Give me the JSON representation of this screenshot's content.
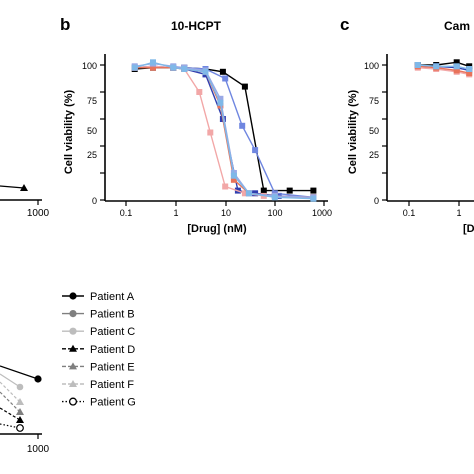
{
  "panels": {
    "a": {
      "x_ticks": [
        "1000"
      ]
    },
    "b": {
      "letter": "b",
      "title": "10-HCPT",
      "xlabel": "[Drug] (nM)",
      "ylabel": "Cell viability (%)",
      "x_ticks": [
        "0.1",
        "1",
        "10",
        "100",
        "1000"
      ],
      "y_ticks": [
        "0",
        "25",
        "50",
        "75",
        "100"
      ]
    },
    "c": {
      "letter": "c",
      "title": "Cam",
      "xlabel": "[D",
      "ylabel": "Cell viability (%)",
      "x_ticks": [
        "0.1",
        "1"
      ],
      "y_ticks": [
        "0",
        "25",
        "50",
        "75",
        "100"
      ]
    },
    "d": {
      "x_ticks": [
        "1000"
      ]
    }
  },
  "legend": {
    "entries": [
      {
        "label": "Patient A",
        "color": "#000000",
        "marker": "circle-filled",
        "dash": "solid"
      },
      {
        "label": "Patient B",
        "color": "#7f7f7f",
        "marker": "circle-filled",
        "dash": "solid"
      },
      {
        "label": "Patient C",
        "color": "#bdbdbd",
        "marker": "circle-filled",
        "dash": "solid"
      },
      {
        "label": "Patient D",
        "color": "#000000",
        "marker": "triangle-filled",
        "dash": "dashed"
      },
      {
        "label": "Patient E",
        "color": "#7f7f7f",
        "marker": "triangle-filled",
        "dash": "dashed"
      },
      {
        "label": "Patient F",
        "color": "#bdbdbd",
        "marker": "triangle-filled",
        "dash": "dashed"
      },
      {
        "label": "Patient G",
        "color": "#000000",
        "marker": "circle-open",
        "dash": "dotted"
      }
    ]
  },
  "chart_data": [
    {
      "panel": "b",
      "type": "line",
      "title": "10-HCPT",
      "xlabel": "[Drug] (nM)",
      "ylabel": "Cell viability (%)",
      "x_scale": "log",
      "xlim": [
        0.05,
        1200
      ],
      "ylim": [
        0,
        110
      ],
      "series": [
        {
          "color": "#000000",
          "marker": "square",
          "x": [
            0.15,
            0.35,
            0.9,
            1.5,
            4,
            9,
            25,
            60,
            200,
            600
          ],
          "y": [
            97,
            98,
            98,
            98,
            97,
            95,
            84,
            7,
            7,
            7
          ]
        },
        {
          "color": "#2f3fb0",
          "marker": "square",
          "x": [
            0.15,
            0.35,
            0.9,
            1.5,
            4,
            9,
            18,
            40,
            120,
            600
          ],
          "y": [
            98,
            99,
            98,
            97,
            93,
            60,
            7,
            5,
            3,
            2
          ]
        },
        {
          "color": "#6f86e0",
          "marker": "square",
          "x": [
            0.15,
            0.35,
            0.9,
            1.5,
            4,
            10,
            22,
            40,
            100,
            600
          ],
          "y": [
            98,
            99,
            98,
            98,
            97,
            90,
            55,
            37,
            5,
            2
          ]
        },
        {
          "color": "#f2a7a7",
          "marker": "square",
          "x": [
            0.15,
            0.35,
            0.9,
            1.5,
            3,
            5,
            10,
            25,
            60,
            600
          ],
          "y": [
            98,
            99,
            98,
            97,
            80,
            50,
            10,
            5,
            3,
            2
          ]
        },
        {
          "color": "#e8735a",
          "marker": "square",
          "x": [
            0.15,
            0.35,
            0.9,
            1.5,
            4,
            8,
            15,
            30,
            100,
            600
          ],
          "y": [
            98,
            98,
            98,
            97,
            95,
            70,
            15,
            5,
            3,
            2
          ]
        },
        {
          "color": "#9aa9e6",
          "marker": "square",
          "x": [
            0.15,
            0.35,
            0.9,
            1.5,
            4,
            8,
            15,
            30,
            100,
            600
          ],
          "y": [
            99,
            101,
            99,
            98,
            96,
            75,
            20,
            5,
            3,
            2
          ]
        },
        {
          "color": "#7fb8e8",
          "marker": "square",
          "x": [
            0.15,
            0.35,
            0.9,
            1.5,
            4,
            8,
            15,
            30,
            100,
            600
          ],
          "y": [
            98,
            102,
            98,
            97,
            95,
            72,
            18,
            5,
            2,
            1
          ]
        }
      ]
    },
    {
      "panel": "c",
      "type": "line",
      "title": "Cam",
      "xlabel": "[D",
      "ylabel": "Cell viability (%)",
      "x_scale": "log",
      "xlim": [
        0.05,
        2
      ],
      "ylim": [
        0,
        110
      ],
      "series": [
        {
          "color": "#000000",
          "marker": "square",
          "x": [
            0.15,
            0.35,
            0.9,
            1.6
          ],
          "y": [
            100,
            100,
            102,
            99
          ]
        },
        {
          "color": "#2f3fb0",
          "marker": "square",
          "x": [
            0.15,
            0.35,
            0.9,
            1.6
          ],
          "y": [
            99,
            99,
            98,
            96
          ]
        },
        {
          "color": "#f2a7a7",
          "marker": "square",
          "x": [
            0.15,
            0.35,
            0.9,
            1.6
          ],
          "y": [
            98,
            97,
            95,
            93
          ]
        },
        {
          "color": "#e8735a",
          "marker": "square",
          "x": [
            0.15,
            0.35,
            0.9,
            1.6
          ],
          "y": [
            99,
            98,
            96,
            94
          ]
        },
        {
          "color": "#7fb8e8",
          "marker": "square",
          "x": [
            0.15,
            0.35,
            0.9,
            1.6
          ],
          "y": [
            100,
            99,
            99,
            97
          ]
        }
      ]
    }
  ]
}
